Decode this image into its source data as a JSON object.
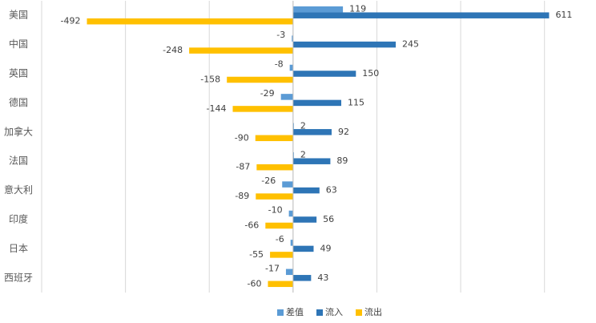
{
  "chart_data": {
    "type": "bar",
    "horizontal": true,
    "categories": [
      "美国",
      "中国",
      "英国",
      "德国",
      "加拿大",
      "法国",
      "意大利",
      "印度",
      "日本",
      "西班牙"
    ],
    "series": [
      {
        "name": "差值",
        "color": "#5b9bd5",
        "values": [
          119,
          -3,
          -8,
          -29,
          2,
          2,
          -26,
          -10,
          -6,
          -17
        ]
      },
      {
        "name": "流入",
        "color": "#2e75b6",
        "values": [
          611,
          245,
          150,
          115,
          92,
          89,
          63,
          56,
          49,
          43
        ]
      },
      {
        "name": "流出",
        "color": "#ffc000",
        "values": [
          -492,
          -248,
          -158,
          -144,
          -90,
          -87,
          -89,
          -66,
          -55,
          -60
        ]
      }
    ],
    "xlim": [
      -600,
      700
    ],
    "xticks": [
      -600,
      -400,
      -200,
      0,
      200,
      400,
      600
    ],
    "grid": true,
    "legend": "bottom"
  }
}
